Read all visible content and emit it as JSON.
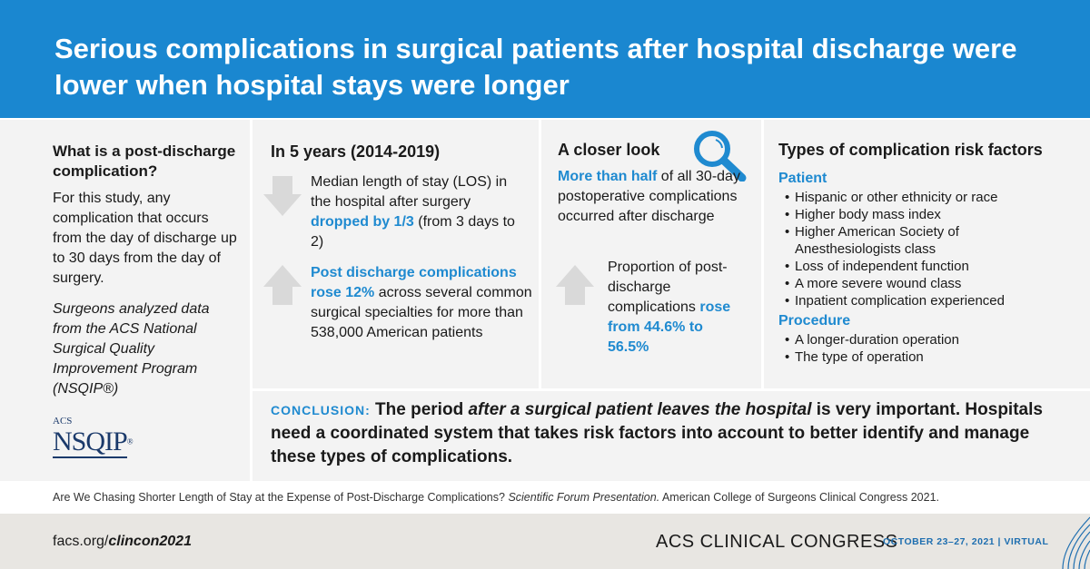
{
  "header": {
    "title": "Serious complications in surgical patients after hospital discharge were lower when hospital stays were longer"
  },
  "definition": {
    "heading": "What is a post-discharge complication?",
    "body": "For this study, any complication that occurs from the day of discharge up to 30 days from the day of surgery.",
    "note": "Surgeons analyzed data from the ACS National Surgical Quality Improvement Program (NSQIP®)",
    "logo": {
      "prefix": "ACS",
      "name": "NSQIP",
      "mark": "®"
    }
  },
  "trends": {
    "heading": "In 5 years (2014-2019)",
    "items": [
      [
        "Median length of stay (LOS) in the hospital after surgery ",
        "dropped by 1/3",
        " (from 3 days to 2)"
      ],
      [
        "Post discharge complications rose 12%",
        " across several common surgical specialties for more than 538,000 American patients"
      ]
    ]
  },
  "closer_look": {
    "heading": "A closer look",
    "lead": [
      "More than half",
      " of all 30-day postoperative complications occurred after discharge"
    ],
    "item": [
      "Proportion of post-discharge complications ",
      "rose from 44.6% to 56.5%"
    ]
  },
  "risk_factors": {
    "heading": "Types of complication risk factors",
    "groups": [
      {
        "name": "Patient",
        "items": [
          "Hispanic or other ethnicity or race",
          "Higher body mass index",
          "Higher American Society of Anesthesiologists class",
          "Loss of independent function",
          "A more severe wound class",
          "Inpatient complication experienced"
        ]
      },
      {
        "name": "Procedure",
        "items": [
          "A longer-duration operation",
          "The type of operation"
        ]
      }
    ]
  },
  "conclusion": [
    "CONCLUSION:",
    " The period ",
    "after a surgical patient leaves the hospital",
    " is very important. Hospitals need a coordinated system that takes risk factors into account to better identify and manage these types of complications."
  ],
  "citation": [
    "Are We Chasing Shorter Length of Stay at the Expense of Post-Discharge Complications? ",
    "Scientific Forum Presentation.",
    " American College of Surgeons Clinical Congress 2021."
  ],
  "footer": {
    "url": [
      "facs.org/",
      "clincon2021"
    ],
    "event": "ACS CLINICAL CONGRESS",
    "dates": "OCTOBER 23–27, 2021 | VIRTUAL"
  }
}
